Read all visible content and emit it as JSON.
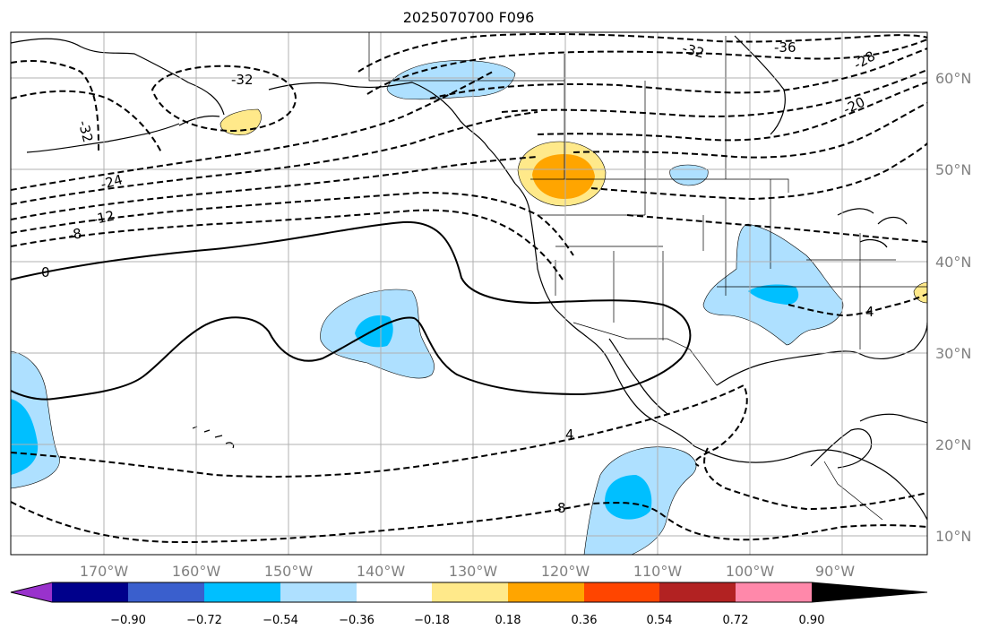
{
  "title": "2025070700 F096",
  "lon_labels": [
    "170°W",
    "160°W",
    "150°W",
    "140°W",
    "130°W",
    "120°W",
    "110°W",
    "100°W",
    "90°W"
  ],
  "lat_labels": [
    "60°N",
    "50°N",
    "40°N",
    "30°N",
    "20°N",
    "10°N"
  ],
  "colorbar": {
    "tick_labels": [
      "−0.90",
      "−0.72",
      "−0.54",
      "−0.36",
      "−0.18",
      "0.18",
      "0.36",
      "0.54",
      "0.72",
      "0.90"
    ],
    "colors": [
      "#9932cc",
      "#00008b",
      "#3a5fcd",
      "#00bfff",
      "#aee0ff",
      "#ffffff",
      "#ffe98a",
      "#ffa500",
      "#ff4500",
      "#b22222",
      "#ff88aa"
    ]
  },
  "contour_labels": [
    "-36",
    "-32",
    "-32",
    "-32",
    "-28",
    "-24",
    "-20",
    "-12",
    "-8",
    "0",
    "4",
    "4",
    "8"
  ],
  "fill_colors": {
    "light_blue": "#aee0ff",
    "blue": "#00bfff",
    "light_yellow": "#ffe98a",
    "orange": "#ffa500"
  }
}
